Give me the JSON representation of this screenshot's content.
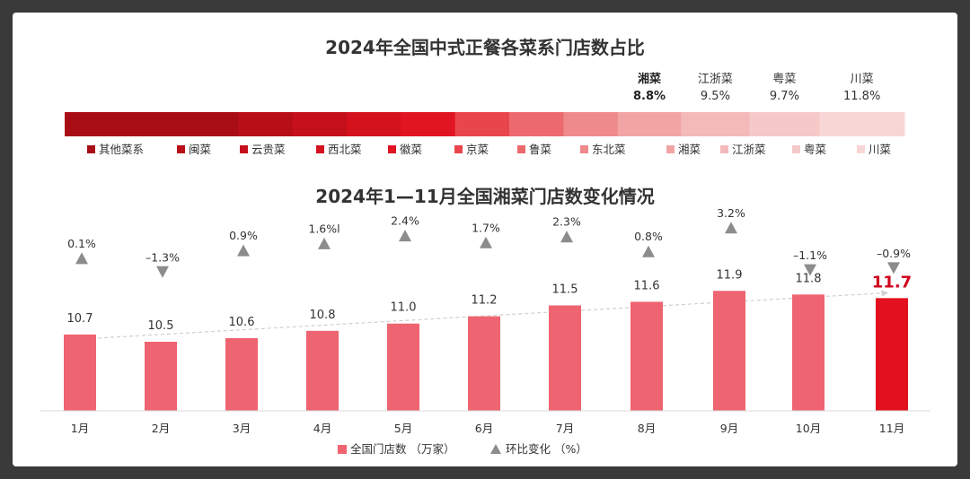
{
  "colors": {
    "bar": "#ee6470",
    "bar_highlight": "#e3101e",
    "marker": "#8c8c8c",
    "trend": "#cfcfcf",
    "highlight_text": "#d0021b"
  },
  "chart_data": [
    {
      "type": "bar",
      "orientation": "horizontal-stacked-100",
      "title": "2024年全国中式正餐各菜系门店数占比",
      "categories": [
        "其他菜系",
        "闽菜",
        "云贵菜",
        "西北菜",
        "徽菜",
        "京菜",
        "鲁菜",
        "东北菜",
        "湘菜",
        "江浙菜",
        "粤菜",
        "川菜"
      ],
      "colors": [
        "#a80d15",
        "#b70e18",
        "#c5101b",
        "#d3121e",
        "#e11522",
        "#e8464c",
        "#ec6a6e",
        "#ef8a8c",
        "#f2a4a5",
        "#f4b9b9",
        "#f6c9c9",
        "#f8d6d6"
      ],
      "shares": [
        null,
        null,
        null,
        null,
        null,
        null,
        null,
        null,
        8.8,
        9.5,
        9.7,
        11.8
      ],
      "labeled": [
        {
          "name": "湘菜",
          "value": "8.8%"
        },
        {
          "name": "江浙菜",
          "value": "9.5%"
        },
        {
          "name": "粤菜",
          "value": "9.7%"
        },
        {
          "name": "川菜",
          "value": "11.8%"
        }
      ],
      "legend": "bottom"
    },
    {
      "type": "bar",
      "title": "2024年1—11月全国湘菜门店数变化情况",
      "categories": [
        "1月",
        "2月",
        "3月",
        "4月",
        "5月",
        "6月",
        "7月",
        "8月",
        "9月",
        "10月",
        "11月"
      ],
      "series": [
        {
          "name": "全国门店数 （万家）",
          "type": "bar",
          "values": [
            10.7,
            10.5,
            10.6,
            10.8,
            11.0,
            11.2,
            11.5,
            11.6,
            11.9,
            11.8,
            11.7
          ]
        },
        {
          "name": "环比变化 （%）",
          "type": "marker",
          "values": [
            0.1,
            -1.3,
            0.9,
            1.6,
            2.4,
            1.7,
            2.3,
            0.8,
            3.2,
            -1.1,
            -0.9
          ]
        }
      ],
      "value_labels": [
        "10.7",
        "10.5",
        "10.6",
        "10.8",
        "11.0",
        "11.2",
        "11.5",
        "11.6",
        "11.9",
        "11.8",
        "11.7"
      ],
      "change_labels": [
        "0.1%",
        "–1.3%",
        "0.9%",
        "1.6%l",
        "2.4%",
        "1.7%",
        "2.3%",
        "0.8%",
        "3.2%",
        "–1.1%",
        "–0.9%"
      ],
      "highlight_index": 10,
      "trend_line": true,
      "legend": "bottom"
    }
  ]
}
